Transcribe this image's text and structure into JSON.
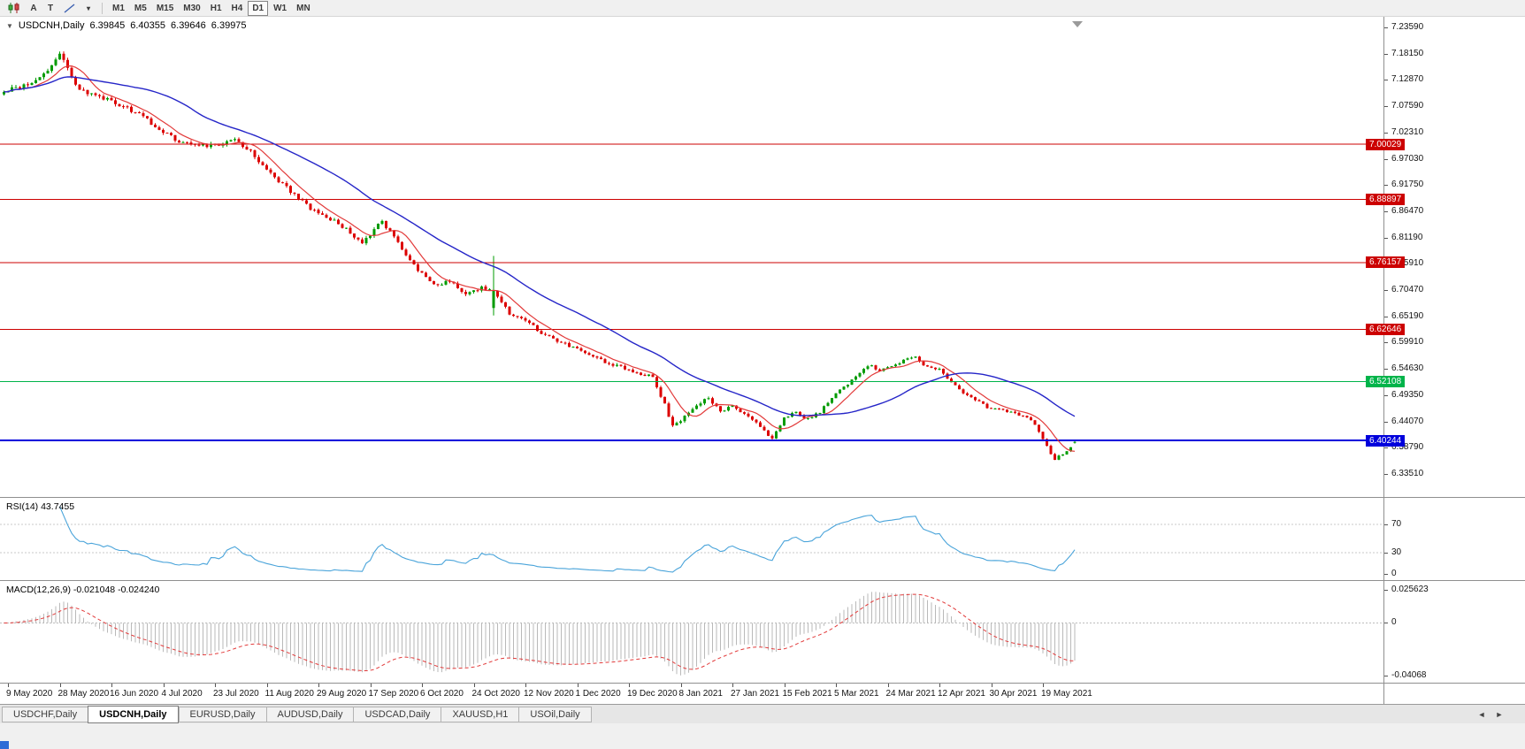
{
  "toolbar": {
    "tools": [
      {
        "name": "chart-type",
        "label": ""
      },
      {
        "name": "text-a",
        "label": "A"
      },
      {
        "name": "text-t",
        "label": "T"
      },
      {
        "name": "trendline",
        "label": ""
      },
      {
        "name": "dropdown",
        "label": "▾"
      }
    ],
    "timeframes": [
      "M1",
      "M5",
      "M15",
      "M30",
      "H1",
      "H4",
      "D1",
      "W1",
      "MN"
    ],
    "active_timeframe": "D1"
  },
  "chart": {
    "marker": "▼",
    "symbol_period": "USDCNH,Daily",
    "open": "6.39845",
    "high": "6.40355",
    "low": "6.39646",
    "close": "6.39975"
  },
  "chart_data": {
    "type": "candlestick",
    "symbol": "USDCNH",
    "period": "Daily",
    "last_ohlc": {
      "open": 6.39845,
      "high": 6.40355,
      "low": 6.39646,
      "close": 6.39975
    },
    "price_axis": {
      "top_value": 7.2359,
      "bottom_value": 6.3351,
      "ticks": [
        "7.23590",
        "7.18150",
        "7.12870",
        "7.07590",
        "7.02310",
        "6.97030",
        "6.91750",
        "6.86470",
        "6.81190",
        "6.75910",
        "6.70470",
        "6.65190",
        "6.59910",
        "6.54630",
        "6.49350",
        "6.44070",
        "6.38790",
        "6.33510"
      ]
    },
    "date_axis": [
      "9 May 2020",
      "28 May 2020",
      "16 Jun 2020",
      "4 Jul 2020",
      "23 Jul 2020",
      "11 Aug 2020",
      "29 Aug 2020",
      "17 Sep 2020",
      "6 Oct 2020",
      "24 Oct 2020",
      "12 Nov 2020",
      "1 Dec 2020",
      "19 Dec 2020",
      "8 Jan 2021",
      "27 Jan 2021",
      "15 Feb 2021",
      "5 Mar 2021",
      "24 Mar 2021",
      "12 Apr 2021",
      "30 Apr 2021",
      "19 May 2021"
    ],
    "horizontal_levels": [
      {
        "value": 7.00029,
        "label": "7.00029",
        "color": "#cc0000",
        "width": 1
      },
      {
        "value": 6.88897,
        "label": "6.88897",
        "color": "#cc0000",
        "width": 1
      },
      {
        "value": 6.76157,
        "label": "6.76157",
        "color": "#cc0000",
        "width": 1
      },
      {
        "value": 6.62646,
        "label": "6.62646",
        "color": "#cc0000",
        "width": 1
      },
      {
        "value": 6.52108,
        "label": "6.52108",
        "color": "#00b44a",
        "width": 1
      },
      {
        "value": 6.40244,
        "label": "6.40244",
        "color": "#0000dc",
        "width": 2
      }
    ],
    "bar_count": 270,
    "trend_anchors": [
      [
        0,
        7.105
      ],
      [
        5,
        7.12
      ],
      [
        9,
        7.135
      ],
      [
        12,
        7.16
      ],
      [
        14,
        7.185
      ],
      [
        16,
        7.15
      ],
      [
        19,
        7.11
      ],
      [
        24,
        7.095
      ],
      [
        29,
        7.08
      ],
      [
        34,
        7.06
      ],
      [
        39,
        7.03
      ],
      [
        44,
        7.005
      ],
      [
        49,
        6.995
      ],
      [
        54,
        7.0
      ],
      [
        58,
        7.012
      ],
      [
        62,
        6.985
      ],
      [
        66,
        6.95
      ],
      [
        70,
        6.92
      ],
      [
        74,
        6.89
      ],
      [
        78,
        6.865
      ],
      [
        82,
        6.85
      ],
      [
        86,
        6.83
      ],
      [
        90,
        6.8
      ],
      [
        95,
        6.845
      ],
      [
        100,
        6.79
      ],
      [
        104,
        6.745
      ],
      [
        108,
        6.715
      ],
      [
        112,
        6.725
      ],
      [
        116,
        6.695
      ],
      [
        120,
        6.71
      ],
      [
        123,
        6.705
      ],
      [
        127,
        6.66
      ],
      [
        131,
        6.645
      ],
      [
        135,
        6.62
      ],
      [
        139,
        6.605
      ],
      [
        143,
        6.59
      ],
      [
        147,
        6.575
      ],
      [
        151,
        6.56
      ],
      [
        155,
        6.55
      ],
      [
        159,
        6.54
      ],
      [
        163,
        6.53
      ],
      [
        166,
        6.475
      ],
      [
        168,
        6.43
      ],
      [
        171,
        6.45
      ],
      [
        174,
        6.47
      ],
      [
        177,
        6.49
      ],
      [
        180,
        6.46
      ],
      [
        183,
        6.475
      ],
      [
        186,
        6.455
      ],
      [
        189,
        6.44
      ],
      [
        193,
        6.405
      ],
      [
        196,
        6.45
      ],
      [
        199,
        6.46
      ],
      [
        202,
        6.445
      ],
      [
        205,
        6.46
      ],
      [
        208,
        6.49
      ],
      [
        211,
        6.51
      ],
      [
        214,
        6.53
      ],
      [
        217,
        6.555
      ],
      [
        220,
        6.545
      ],
      [
        223,
        6.55
      ],
      [
        226,
        6.565
      ],
      [
        229,
        6.57
      ],
      [
        232,
        6.55
      ],
      [
        235,
        6.545
      ],
      [
        238,
        6.52
      ],
      [
        241,
        6.5
      ],
      [
        244,
        6.485
      ],
      [
        247,
        6.47
      ],
      [
        250,
        6.465
      ],
      [
        253,
        6.46
      ],
      [
        256,
        6.45
      ],
      [
        258,
        6.445
      ],
      [
        260,
        6.42
      ],
      [
        262,
        6.39
      ],
      [
        264,
        6.365
      ],
      [
        266,
        6.375
      ],
      [
        268,
        6.39
      ],
      [
        269,
        6.3998
      ]
    ],
    "spike_override": [
      123,
      6.67,
      6.775,
      6.655,
      6.705
    ],
    "indicators": {
      "ma_fast_period": 8,
      "ma_slow_period": 34,
      "rsi_period": 14,
      "macd": [
        12,
        26,
        9
      ]
    },
    "colors": {
      "up": "#009b00",
      "down": "#dc0000",
      "ma_fast": "#e23a3a",
      "ma_slow": "#2525c8",
      "rsi": "#4aa4da",
      "macd_hist": "#b9b9b9",
      "macd_signal": "#e23a3a",
      "shift_marker": "#9a9a9a"
    }
  },
  "rsi_panel": {
    "label": "RSI(14) 43.7455",
    "axis": [
      {
        "v": 70,
        "t": "70"
      },
      {
        "v": 30,
        "t": "30"
      },
      {
        "v": 0,
        "t": "0"
      }
    ]
  },
  "macd_panel": {
    "label": "MACD(12,26,9) -0.021048 -0.024240",
    "axis": [
      {
        "v": 0.025623,
        "t": "0.025623"
      },
      {
        "v": 0,
        "t": "0"
      },
      {
        "v": -0.04068,
        "t": "-0.04068"
      }
    ]
  },
  "tabs": {
    "items": [
      "USDCHF,Daily",
      "USDCNH,Daily",
      "EURUSD,Daily",
      "AUDUSD,Daily",
      "USDCAD,Daily",
      "XAUUSD,H1",
      "USOil,Daily"
    ],
    "active": "USDCNH,Daily",
    "scroll_left": "◄",
    "scroll_right": "►"
  }
}
